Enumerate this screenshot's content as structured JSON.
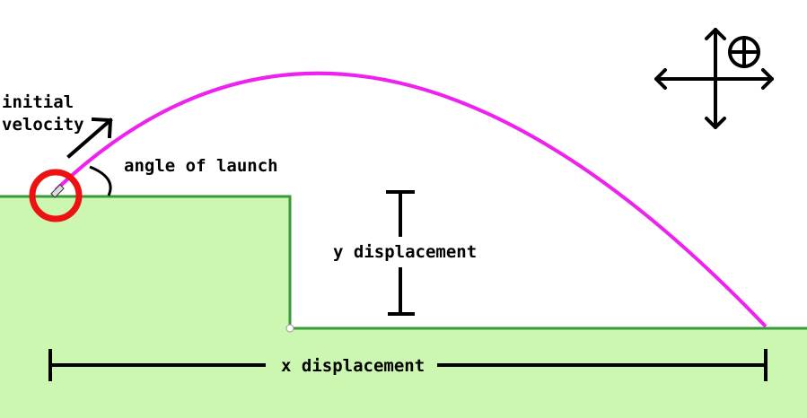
{
  "labels": {
    "initial_velocity_line1": "initial",
    "initial_velocity_line2": "velocity",
    "angle_of_launch": "angle of launch",
    "y_displacement": "y displacement",
    "x_displacement": "x displacement"
  },
  "icons": {
    "compass": "crosshair-arrows-icon",
    "launcher": "cannon-icon"
  },
  "colors": {
    "trajectory": "#ee22ee",
    "ground_fill": "#ccf7b0",
    "ground_edge": "#3a9a3a",
    "launch_marker": "#ee1111",
    "ink": "#000000"
  }
}
